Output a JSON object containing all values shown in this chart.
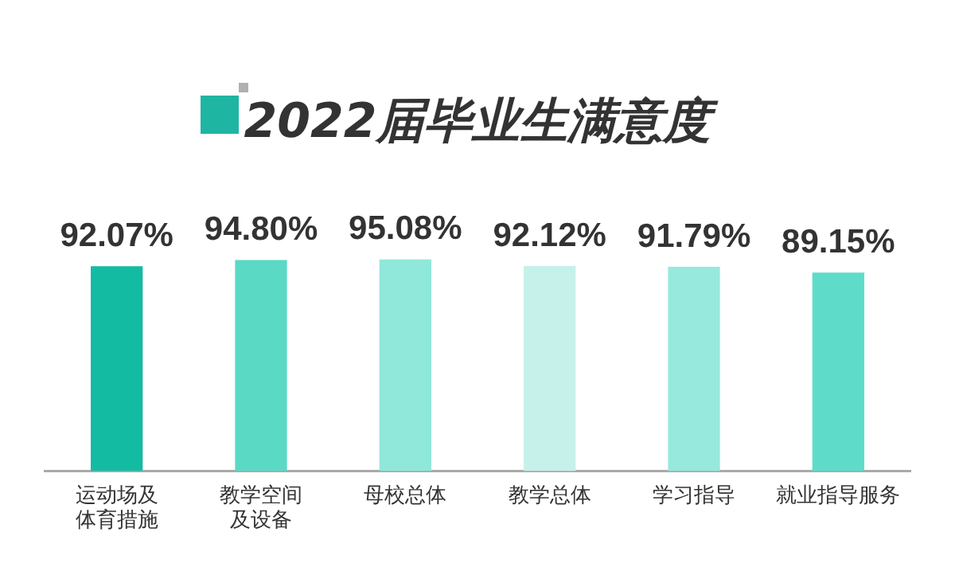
{
  "chart_data": {
    "type": "bar",
    "title": "2022届毕业生满意度",
    "categories": [
      "运动场及体育措施",
      "教学空间及设备",
      "母校总体",
      "教学总体",
      "学习指导",
      "就业指导服务"
    ],
    "values": [
      92.07,
      94.8,
      95.08,
      92.12,
      91.79,
      89.15
    ],
    "value_labels": [
      "92.07%",
      "94.80%",
      "95.08%",
      "92.12%",
      "91.79%",
      "89.15%"
    ],
    "colors": [
      "#14bba3",
      "#5ad9c5",
      "#8fe8d9",
      "#c6f1ea",
      "#96e9dc",
      "#5edcc9"
    ],
    "tick_labels": "x",
    "grid": false,
    "legend": false
  }
}
